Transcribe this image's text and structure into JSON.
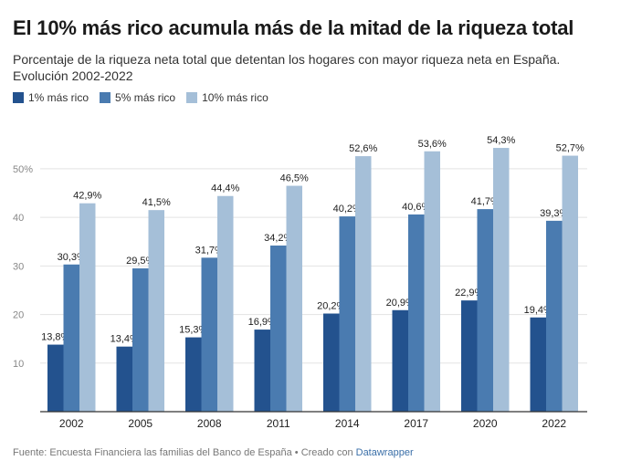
{
  "header": {
    "title": "El 10% más rico acumula más de la mitad de la riqueza total",
    "subtitle": "Porcentaje de la riqueza neta total que detentan los hogares con mayor riqueza neta en España. Evolución 2002-2022"
  },
  "colors": {
    "series_1": "#23528e",
    "series_2": "#4a7bb0",
    "series_3": "#a5bfd8",
    "grid": "#e3e3e3",
    "axis": "#333333",
    "tick_text": "#888888"
  },
  "chart_data": {
    "type": "bar",
    "title": "El 10% más rico acumula más de la mitad de la riqueza total",
    "xlabel": "",
    "ylabel": "",
    "ylim": [
      0,
      56
    ],
    "grid": true,
    "legend_position": "top-left",
    "categories": [
      "2002",
      "2005",
      "2008",
      "2011",
      "2014",
      "2017",
      "2020",
      "2022"
    ],
    "yticks": [
      10,
      20,
      30,
      40,
      50
    ],
    "ytick_labels": [
      "10",
      "20",
      "30",
      "40",
      "50%"
    ],
    "series": [
      {
        "name": "1% más rico",
        "values": [
          13.8,
          13.4,
          15.3,
          16.9,
          20.2,
          20.9,
          22.9,
          19.4
        ],
        "labels": [
          "13,8%",
          "13,4%",
          "15,3%",
          "16,9%",
          "20,2%",
          "20,9%",
          "22,9%",
          "19,4%"
        ]
      },
      {
        "name": "5% más rico",
        "values": [
          30.3,
          29.5,
          31.7,
          34.2,
          40.2,
          40.6,
          41.7,
          39.3
        ],
        "labels": [
          "30,3%",
          "29,5%",
          "31,7%",
          "34,2%",
          "40,2%",
          "40,6%",
          "41,7%",
          "39,3%"
        ]
      },
      {
        "name": "10% más rico",
        "values": [
          42.9,
          41.5,
          44.4,
          46.5,
          52.6,
          53.6,
          54.3,
          52.7
        ],
        "labels": [
          "42,9%",
          "41,5%",
          "44,4%",
          "46,5%",
          "52,6%",
          "53,6%",
          "54,3%",
          "52,7%"
        ]
      }
    ]
  },
  "footer": {
    "source_text": "Fuente: Encuesta Financiera las familias del Banco de España • Creado con ",
    "credit_link": "Datawrapper"
  }
}
